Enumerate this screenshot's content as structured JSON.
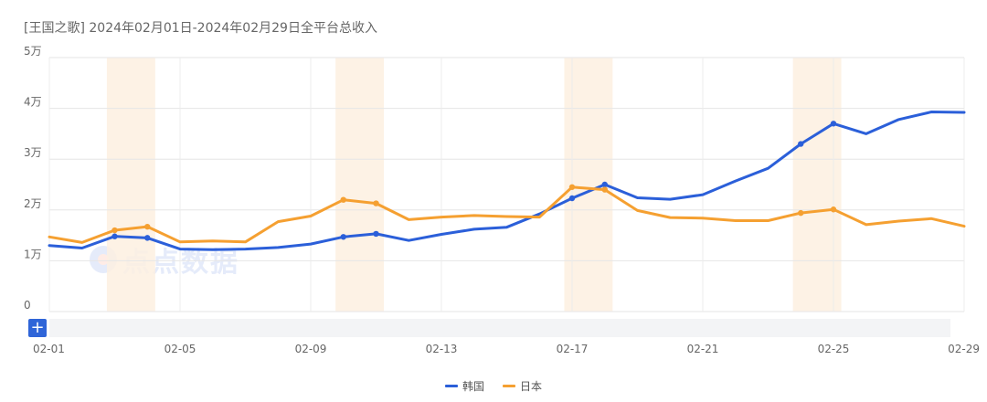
{
  "title": "[王国之歌]  2024年02月01日-2024年02月29日全平台总收入",
  "watermark_text": "点点数据",
  "scroll_button_label": "+",
  "chart_data": {
    "type": "line",
    "x": [
      "02-01",
      "02-02",
      "02-03",
      "02-04",
      "02-05",
      "02-06",
      "02-07",
      "02-08",
      "02-09",
      "02-10",
      "02-11",
      "02-12",
      "02-13",
      "02-14",
      "02-15",
      "02-16",
      "02-17",
      "02-18",
      "02-19",
      "02-20",
      "02-21",
      "02-22",
      "02-23",
      "02-24",
      "02-25",
      "02-26",
      "02-27",
      "02-28",
      "02-29"
    ],
    "x_tick_labels": [
      "02-01",
      "02-05",
      "02-09",
      "02-13",
      "02-17",
      "02-21",
      "02-25",
      "02-29"
    ],
    "y_tick_labels": [
      "0",
      "1万",
      "2万",
      "3万",
      "4万",
      "5万"
    ],
    "ylim": [
      0,
      50000
    ],
    "grid": true,
    "legend_position": "bottom",
    "highlight_ranges": [
      [
        "02-03",
        "02-04"
      ],
      [
        "02-10",
        "02-11"
      ],
      [
        "02-17",
        "02-18"
      ],
      [
        "02-24",
        "02-25"
      ]
    ],
    "series": [
      {
        "name": "韩国",
        "color": "#2b5fd9",
        "values": [
          13000,
          12500,
          14800,
          14500,
          12300,
          12200,
          12300,
          12600,
          13300,
          14700,
          15300,
          14000,
          15200,
          16200,
          16600,
          19200,
          22300,
          25000,
          22400,
          22100,
          23000,
          25700,
          28200,
          33000,
          37000,
          35000,
          37800,
          39300,
          39200
        ],
        "markers": [
          "02-03",
          "02-04",
          "02-10",
          "02-11",
          "02-17",
          "02-18",
          "02-24",
          "02-25"
        ]
      },
      {
        "name": "日本",
        "color": "#f5a031",
        "values": [
          14700,
          13600,
          16000,
          16700,
          13700,
          13900,
          13700,
          17700,
          18800,
          22000,
          21300,
          18100,
          18600,
          18900,
          18700,
          18600,
          24500,
          24000,
          19900,
          18500,
          18400,
          17900,
          17900,
          19400,
          20100,
          17100,
          17800,
          18300,
          16800
        ],
        "markers": [
          "02-03",
          "02-04",
          "02-10",
          "02-11",
          "02-17",
          "02-18",
          "02-24",
          "02-25"
        ]
      }
    ]
  }
}
